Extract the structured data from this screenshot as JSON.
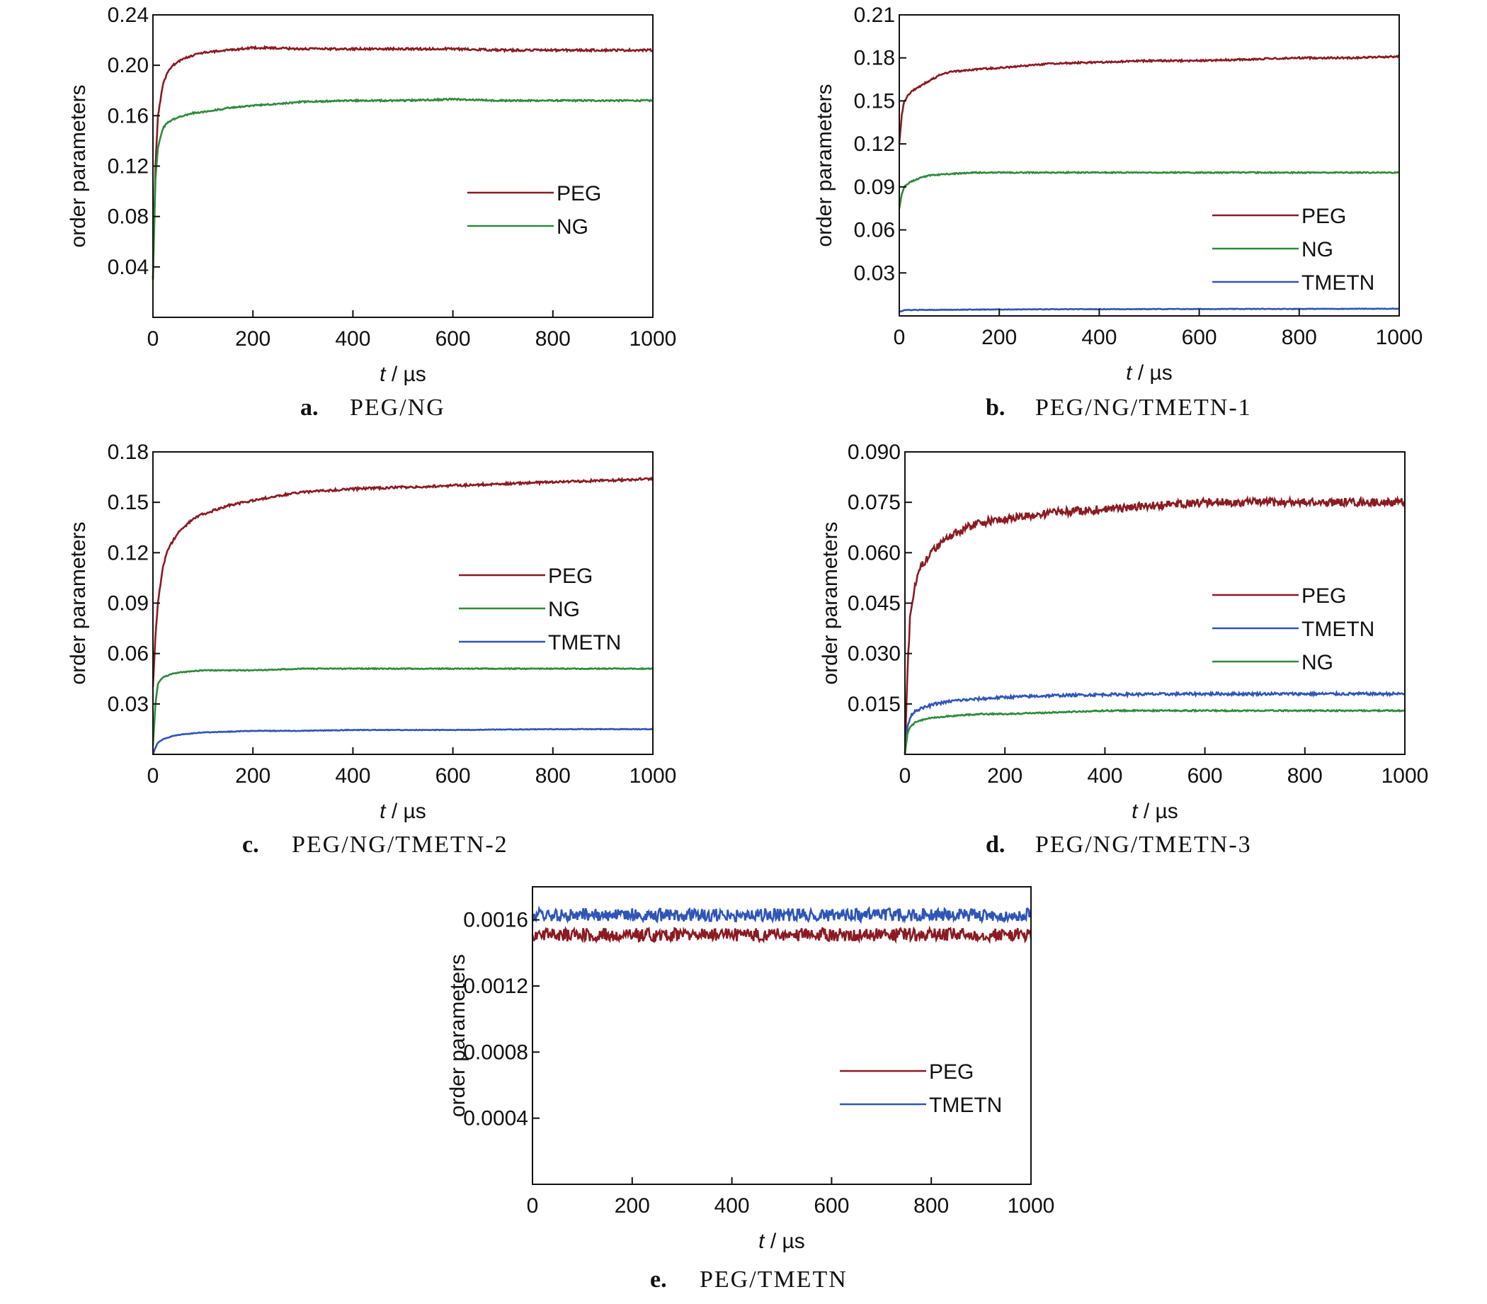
{
  "colors": {
    "PEG": "#8b1a22",
    "NG": "#2f8a3b",
    "TMETN": "#2f55b8"
  },
  "chart_data": [
    {
      "id": "a",
      "type": "line",
      "caption_letter": "a.",
      "caption": "PEG/NG",
      "xlabel_italic": "t",
      "xlabel_rest": " / µs",
      "ylabel": "order parameters",
      "xlim": [
        0,
        1000
      ],
      "ylim": [
        0,
        0.24
      ],
      "xticks": [
        0,
        200,
        400,
        600,
        800,
        1000
      ],
      "yticks": [
        0.04,
        0.08,
        0.12,
        0.16,
        0.2,
        0.24
      ],
      "ytick_labels": [
        "0.04",
        "0.08",
        "0.12",
        "0.16",
        "0.20",
        "0.24"
      ],
      "legend_order": [
        "PEG",
        "NG"
      ],
      "series": [
        {
          "name": "PEG",
          "color": "PEG",
          "noise": 0.0008,
          "x": [
            0,
            5,
            10,
            20,
            30,
            40,
            60,
            80,
            100,
            150,
            200,
            300,
            400,
            500,
            600,
            700,
            800,
            900,
            1000
          ],
          "y": [
            0.03,
            0.12,
            0.16,
            0.185,
            0.195,
            0.2,
            0.205,
            0.208,
            0.21,
            0.212,
            0.214,
            0.213,
            0.213,
            0.213,
            0.213,
            0.212,
            0.212,
            0.212,
            0.212
          ]
        },
        {
          "name": "NG",
          "color": "NG",
          "noise": 0.0006,
          "x": [
            0,
            5,
            10,
            20,
            30,
            40,
            60,
            80,
            100,
            150,
            200,
            300,
            400,
            500,
            600,
            700,
            800,
            900,
            1000
          ],
          "y": [
            0.03,
            0.11,
            0.135,
            0.15,
            0.155,
            0.157,
            0.16,
            0.162,
            0.163,
            0.166,
            0.168,
            0.171,
            0.172,
            0.172,
            0.173,
            0.172,
            0.172,
            0.172,
            0.172
          ]
        }
      ]
    },
    {
      "id": "b",
      "type": "line",
      "caption_letter": "b.",
      "caption": "PEG/NG/TMETN-1",
      "xlabel_italic": "t",
      "xlabel_rest": " / µs",
      "ylabel": "order parameters",
      "xlim": [
        0,
        1000
      ],
      "ylim": [
        0,
        0.21
      ],
      "xticks": [
        0,
        200,
        400,
        600,
        800,
        1000
      ],
      "yticks": [
        0.03,
        0.06,
        0.09,
        0.12,
        0.15,
        0.18,
        0.21
      ],
      "ytick_labels": [
        "0.03",
        "0.06",
        "0.09",
        "0.12",
        "0.15",
        "0.18",
        "0.21"
      ],
      "legend_order": [
        "PEG",
        "NG",
        "TMETN"
      ],
      "series": [
        {
          "name": "PEG",
          "color": "PEG",
          "noise": 0.0006,
          "x": [
            0,
            5,
            10,
            20,
            30,
            50,
            80,
            100,
            150,
            200,
            300,
            400,
            500,
            600,
            700,
            800,
            900,
            1000
          ],
          "y": [
            0.12,
            0.14,
            0.15,
            0.155,
            0.158,
            0.162,
            0.168,
            0.17,
            0.172,
            0.173,
            0.176,
            0.177,
            0.178,
            0.178,
            0.179,
            0.18,
            0.18,
            0.181
          ]
        },
        {
          "name": "NG",
          "color": "NG",
          "noise": 0.0004,
          "x": [
            0,
            5,
            10,
            20,
            40,
            60,
            100,
            150,
            200,
            300,
            400,
            500,
            600,
            700,
            800,
            900,
            1000
          ],
          "y": [
            0.075,
            0.085,
            0.09,
            0.093,
            0.096,
            0.098,
            0.099,
            0.1,
            0.1,
            0.1,
            0.1,
            0.1,
            0.1,
            0.1,
            0.1,
            0.1,
            0.1
          ]
        },
        {
          "name": "TMETN",
          "color": "TMETN",
          "noise": 0.0002,
          "x": [
            0,
            10,
            50,
            200,
            400,
            600,
            800,
            1000
          ],
          "y": [
            0.003,
            0.004,
            0.0042,
            0.0045,
            0.0047,
            0.0048,
            0.0049,
            0.005
          ]
        }
      ]
    },
    {
      "id": "c",
      "type": "line",
      "caption_letter": "c.",
      "caption": "PEG/NG/TMETN-2",
      "xlabel_italic": "t",
      "xlabel_rest": " / µs",
      "ylabel": "order parameters",
      "xlim": [
        0,
        1000
      ],
      "ylim": [
        0,
        0.18
      ],
      "xticks": [
        0,
        200,
        400,
        600,
        800,
        1000
      ],
      "yticks": [
        0.03,
        0.06,
        0.09,
        0.12,
        0.15,
        0.18
      ],
      "ytick_labels": [
        "0.03",
        "0.06",
        "0.09",
        "0.12",
        "0.15",
        "0.18"
      ],
      "legend_order": [
        "PEG",
        "NG",
        "TMETN"
      ],
      "series": [
        {
          "name": "PEG",
          "color": "PEG",
          "noise": 0.0007,
          "x": [
            0,
            5,
            10,
            20,
            30,
            50,
            80,
            100,
            150,
            200,
            250,
            300,
            400,
            500,
            600,
            700,
            800,
            900,
            1000
          ],
          "y": [
            0.04,
            0.07,
            0.09,
            0.112,
            0.122,
            0.132,
            0.14,
            0.143,
            0.148,
            0.151,
            0.154,
            0.156,
            0.158,
            0.159,
            0.16,
            0.161,
            0.162,
            0.163,
            0.164
          ]
        },
        {
          "name": "NG",
          "color": "NG",
          "noise": 0.0003,
          "x": [
            0,
            5,
            10,
            20,
            40,
            60,
            100,
            150,
            200,
            300,
            400,
            600,
            800,
            1000
          ],
          "y": [
            0.005,
            0.03,
            0.042,
            0.046,
            0.048,
            0.049,
            0.05,
            0.05,
            0.05,
            0.051,
            0.051,
            0.051,
            0.051,
            0.051
          ]
        },
        {
          "name": "TMETN",
          "color": "TMETN",
          "noise": 0.0002,
          "x": [
            0,
            5,
            10,
            20,
            40,
            60,
            100,
            150,
            200,
            300,
            400,
            600,
            800,
            1000
          ],
          "y": [
            0.0,
            0.004,
            0.007,
            0.009,
            0.011,
            0.012,
            0.013,
            0.0135,
            0.014,
            0.014,
            0.0145,
            0.0145,
            0.015,
            0.015
          ]
        }
      ]
    },
    {
      "id": "d",
      "type": "line",
      "caption_letter": "d.",
      "caption": "PEG/NG/TMETN-3",
      "xlabel_italic": "t",
      "xlabel_rest": " / µs",
      "ylabel": "order parameters",
      "xlim": [
        0,
        1000
      ],
      "ylim": [
        0,
        0.09
      ],
      "xticks": [
        0,
        200,
        400,
        600,
        800,
        1000
      ],
      "yticks": [
        0.015,
        0.03,
        0.045,
        0.06,
        0.075,
        0.09
      ],
      "ytick_labels": [
        "0.015",
        "0.030",
        "0.045",
        "0.060",
        "0.075",
        "0.090"
      ],
      "legend_order": [
        "PEG",
        "TMETN",
        "NG"
      ],
      "series": [
        {
          "name": "PEG",
          "color": "PEG",
          "noise": 0.0012,
          "x": [
            0,
            5,
            10,
            20,
            30,
            50,
            80,
            100,
            150,
            200,
            300,
            400,
            500,
            600,
            700,
            800,
            900,
            1000
          ],
          "y": [
            0.0,
            0.025,
            0.04,
            0.05,
            0.055,
            0.06,
            0.064,
            0.066,
            0.069,
            0.07,
            0.072,
            0.073,
            0.074,
            0.075,
            0.075,
            0.075,
            0.075,
            0.075
          ]
        },
        {
          "name": "TMETN",
          "color": "TMETN",
          "noise": 0.0004,
          "x": [
            0,
            5,
            10,
            20,
            40,
            60,
            100,
            150,
            200,
            300,
            400,
            600,
            800,
            1000
          ],
          "y": [
            0.0,
            0.008,
            0.011,
            0.013,
            0.014,
            0.015,
            0.016,
            0.0165,
            0.017,
            0.0175,
            0.0178,
            0.018,
            0.018,
            0.018
          ]
        },
        {
          "name": "NG",
          "color": "NG",
          "noise": 0.0002,
          "x": [
            0,
            5,
            10,
            20,
            40,
            60,
            100,
            150,
            200,
            300,
            400,
            600,
            800,
            1000
          ],
          "y": [
            0.0,
            0.006,
            0.008,
            0.0095,
            0.0105,
            0.011,
            0.0115,
            0.012,
            0.012,
            0.0125,
            0.013,
            0.013,
            0.013,
            0.013
          ]
        }
      ]
    },
    {
      "id": "e",
      "type": "line",
      "caption_letter": "e.",
      "caption": "PEG/TMETN",
      "xlabel_italic": "t",
      "xlabel_rest": " / µs",
      "ylabel": "order parameters",
      "xlim": [
        0,
        1000
      ],
      "ylim": [
        0,
        0.0018
      ],
      "xticks": [
        0,
        200,
        400,
        600,
        800,
        1000
      ],
      "yticks": [
        0.0004,
        0.0008,
        0.0012,
        0.0016
      ],
      "ytick_labels": [
        "0.0004",
        "0.0008",
        "0.0012",
        "0.0016"
      ],
      "legend_order": [
        "PEG",
        "TMETN"
      ],
      "series": [
        {
          "name": "PEG",
          "color": "PEG",
          "noise": 4e-05,
          "x": [
            0,
            1000
          ],
          "y": [
            0.00151,
            0.00151
          ]
        },
        {
          "name": "TMETN",
          "color": "TMETN",
          "noise": 4e-05,
          "x": [
            0,
            1000
          ],
          "y": [
            0.00163,
            0.00163
          ]
        }
      ]
    }
  ]
}
